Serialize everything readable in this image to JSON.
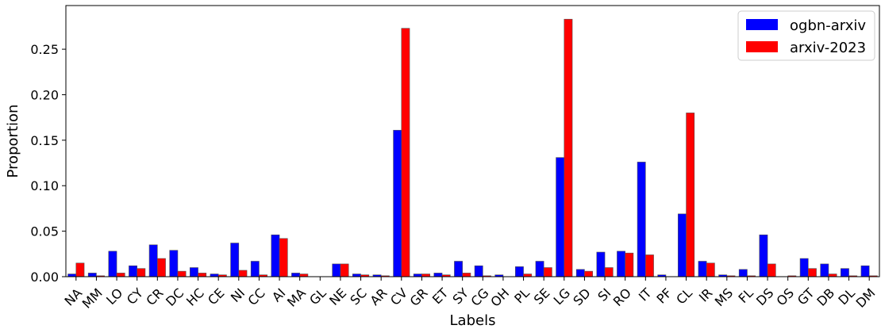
{
  "chart_data": {
    "type": "bar",
    "xlabel": "Labels",
    "ylabel": "Proportion",
    "ylim": [
      0,
      0.298
    ],
    "yticks": [
      "0.00",
      "0.05",
      "0.10",
      "0.15",
      "0.20",
      "0.25"
    ],
    "categories": [
      "NA",
      "MM",
      "LO",
      "CY",
      "CR",
      "DC",
      "HC",
      "CE",
      "NI",
      "CC",
      "AI",
      "MA",
      "GL",
      "NE",
      "SC",
      "AR",
      "CV",
      "GR",
      "ET",
      "SY",
      "CG",
      "OH",
      "PL",
      "SE",
      "LG",
      "SD",
      "SI",
      "RO",
      "IT",
      "PF",
      "CL",
      "IR",
      "MS",
      "FL",
      "DS",
      "OS",
      "GT",
      "DB",
      "DL",
      "DM"
    ],
    "series": [
      {
        "name": "ogbn-arxiv",
        "color": "#0000ff",
        "values": [
          0.003,
          0.004,
          0.028,
          0.012,
          0.035,
          0.029,
          0.01,
          0.003,
          0.037,
          0.017,
          0.046,
          0.004,
          0.0,
          0.014,
          0.003,
          0.002,
          0.161,
          0.003,
          0.004,
          0.017,
          0.012,
          0.002,
          0.011,
          0.017,
          0.131,
          0.008,
          0.027,
          0.028,
          0.126,
          0.002,
          0.069,
          0.017,
          0.002,
          0.008,
          0.046,
          0.0,
          0.02,
          0.014,
          0.009,
          0.012
        ]
      },
      {
        "name": "arxiv-2023",
        "color": "#ff0000",
        "values": [
          0.015,
          0.001,
          0.004,
          0.009,
          0.02,
          0.006,
          0.004,
          0.002,
          0.007,
          0.002,
          0.042,
          0.003,
          0.0,
          0.014,
          0.002,
          0.001,
          0.273,
          0.003,
          0.002,
          0.004,
          0.001,
          0.0,
          0.003,
          0.01,
          0.283,
          0.006,
          0.01,
          0.026,
          0.024,
          0.0,
          0.18,
          0.015,
          0.001,
          0.001,
          0.014,
          0.001,
          0.009,
          0.003,
          0.001,
          0.001
        ]
      }
    ],
    "legend": "top-right",
    "grid": false
  }
}
